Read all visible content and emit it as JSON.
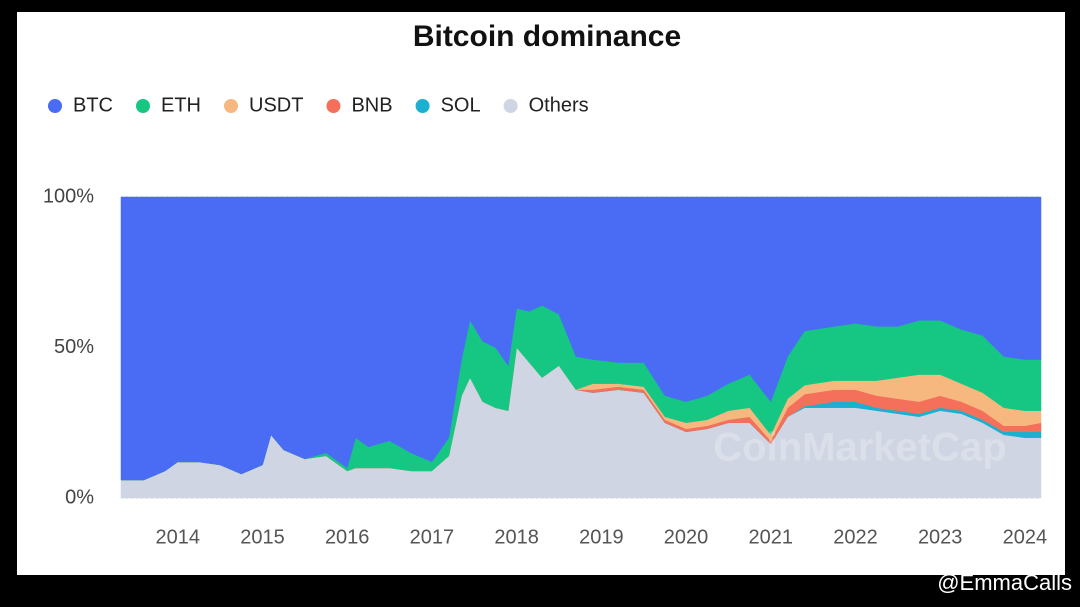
{
  "chart_data": {
    "type": "stacked-area",
    "title": "Bitcoin dominance",
    "watermark": "CoinMarketCap",
    "credit": "@EmmaCalls",
    "x": [
      2013.33,
      2013.6,
      2013.85,
      2014.0,
      2014.25,
      2014.5,
      2014.75,
      2015.0,
      2015.1,
      2015.25,
      2015.5,
      2015.75,
      2016.0,
      2016.1,
      2016.25,
      2016.5,
      2016.75,
      2017.0,
      2017.2,
      2017.35,
      2017.45,
      2017.6,
      2017.75,
      2017.9,
      2018.0,
      2018.15,
      2018.3,
      2018.5,
      2018.7,
      2018.9,
      2019.2,
      2019.5,
      2019.75,
      2020.0,
      2020.25,
      2020.5,
      2020.75,
      2021.0,
      2021.2,
      2021.4,
      2021.75,
      2022.0,
      2022.25,
      2022.5,
      2022.75,
      2023.0,
      2023.25,
      2023.5,
      2023.75,
      2024.0,
      2024.19
    ],
    "series": [
      {
        "name": "BTC",
        "color": "#4a6cf4",
        "values": [
          94,
          94,
          91,
          88,
          88,
          89,
          92,
          89,
          79,
          84,
          87,
          85,
          90,
          80,
          83,
          81,
          85,
          88,
          80,
          54,
          41,
          48,
          50,
          56,
          37,
          38,
          36,
          39,
          53,
          54,
          55,
          55,
          66,
          68,
          66,
          62,
          59,
          68,
          53,
          44.5,
          43,
          42,
          43,
          43,
          41,
          41,
          44,
          46,
          53,
          54,
          54
        ]
      },
      {
        "name": "ETH",
        "color": "#16c784",
        "values": [
          0,
          0,
          0,
          0,
          0,
          0,
          0,
          0,
          0,
          0,
          0,
          1,
          1,
          10,
          7,
          9,
          6,
          3,
          6,
          12,
          19,
          20,
          20,
          15,
          13,
          17,
          24,
          17,
          11,
          8,
          7,
          8,
          7,
          7,
          8,
          9,
          11,
          11,
          14,
          18,
          18,
          19,
          18,
          17,
          18,
          18,
          18,
          19,
          17,
          17,
          17
        ]
      },
      {
        "name": "USDT",
        "color": "#f6b87e",
        "values": [
          0,
          0,
          0,
          0,
          0,
          0,
          0,
          0,
          0,
          0,
          0,
          0,
          0,
          0,
          0,
          0,
          0,
          0,
          0,
          0,
          0,
          0,
          0,
          0,
          0,
          0,
          0,
          0,
          0,
          2,
          1,
          1,
          1,
          2,
          2,
          3,
          3,
          2,
          3,
          3,
          3,
          3,
          5,
          7,
          9,
          7,
          6,
          6,
          6,
          5,
          4
        ]
      },
      {
        "name": "BNB",
        "color": "#f5705a",
        "values": [
          0,
          0,
          0,
          0,
          0,
          0,
          0,
          0,
          0,
          0,
          0,
          0,
          0,
          0,
          0,
          0,
          0,
          0,
          0,
          0,
          0,
          0,
          0,
          0,
          0,
          0,
          0,
          0,
          0,
          1,
          1,
          1,
          1,
          1,
          1,
          1,
          2,
          1,
          3,
          4,
          4,
          4,
          4,
          4,
          4,
          4,
          3,
          3,
          2,
          2,
          3
        ]
      },
      {
        "name": "SOL",
        "color": "#1bb0d0",
        "values": [
          0,
          0,
          0,
          0,
          0,
          0,
          0,
          0,
          0,
          0,
          0,
          0,
          0,
          0,
          0,
          0,
          0,
          0,
          0,
          0,
          0,
          0,
          0,
          0,
          0,
          0,
          0,
          0,
          0,
          0,
          0,
          0,
          0,
          0,
          0,
          0,
          0,
          0,
          0,
          0.5,
          2,
          2,
          1,
          1,
          1,
          1,
          1,
          1,
          1,
          2,
          2
        ]
      },
      {
        "name": "Others",
        "color": "#cfd5e2",
        "values": [
          6,
          6,
          9,
          12,
          12,
          11,
          8,
          11,
          21,
          16,
          13,
          14,
          9,
          10,
          10,
          10,
          9,
          9,
          14,
          34,
          40,
          32,
          30,
          29,
          50,
          45,
          40,
          44,
          36,
          35,
          36,
          35,
          25,
          22,
          23,
          25,
          25,
          18,
          27,
          30,
          30,
          30,
          29,
          28,
          27,
          29,
          28,
          25,
          21,
          20,
          20
        ]
      }
    ],
    "xlim": [
      2013.33,
      2024.19
    ],
    "xticks": [
      2014,
      2015,
      2016,
      2017,
      2018,
      2019,
      2020,
      2021,
      2022,
      2023,
      2024
    ],
    "ylim": [
      0,
      100
    ],
    "yticks": [
      {
        "value": 0,
        "label": "0%"
      },
      {
        "value": 50,
        "label": "50%"
      },
      {
        "value": 100,
        "label": "100%"
      }
    ],
    "grid": true
  }
}
